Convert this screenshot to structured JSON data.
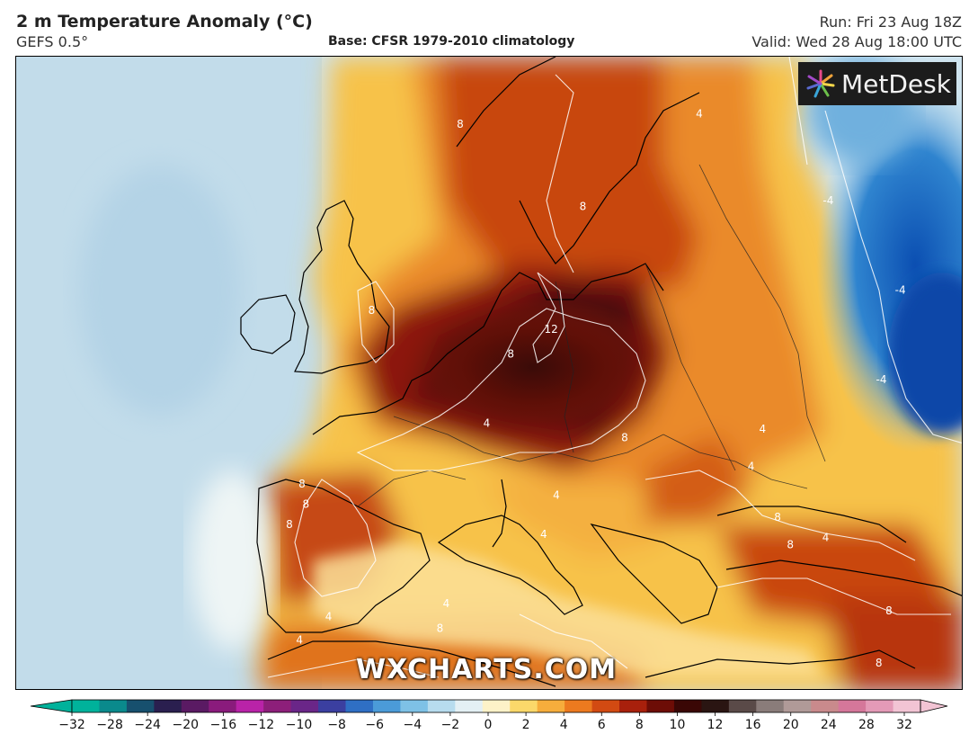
{
  "header": {
    "title": "2 m Temperature Anomaly (°C)",
    "model": "GEFS 0.5°",
    "base": "Base: CFSR 1979-2010 climatology",
    "run": "Run: Fri 23 Aug 18Z",
    "valid": "Valid: Wed 28 Aug 18:00 UTC"
  },
  "logo": {
    "text": "MetDesk",
    "icon": "pinwheel-logo-icon"
  },
  "watermark": "WXCHARTS.COM",
  "colorbar": {
    "ticks": [
      "−32",
      "−28",
      "−24",
      "−20",
      "−16",
      "−12",
      "−10",
      "−8",
      "−6",
      "−4",
      "−2",
      "0",
      "2",
      "4",
      "6",
      "8",
      "10",
      "12",
      "16",
      "20",
      "24",
      "28",
      "32"
    ],
    "colors": [
      "#00b29b",
      "#0a8a8c",
      "#17506e",
      "#2a1f4f",
      "#5a1a63",
      "#8a1b7c",
      "#b923a8",
      "#8d1f7a",
      "#6a2688",
      "#3b3fa0",
      "#2f6fc4",
      "#4b9bd8",
      "#7ec1e6",
      "#b7dcee",
      "#e4f0f4",
      "#fdf2c8",
      "#fbd86a",
      "#f6ad3c",
      "#ec7a1f",
      "#d24a12",
      "#a8200c",
      "#6d0d06",
      "#3a0705",
      "#2a1512",
      "#5a4a48",
      "#8a7c7a",
      "#b09a98",
      "#c98a8c",
      "#d5779a",
      "#e49ab7",
      "#f2c4d4"
    ]
  },
  "map_labels": [
    {
      "text": "8",
      "lon": 5.8,
      "lat": 65.5
    },
    {
      "text": "8",
      "lon": 15.5,
      "lat": 59.8
    },
    {
      "text": "8",
      "lon": -1.2,
      "lat": 52.6
    },
    {
      "text": "12",
      "lon": 13.0,
      "lat": 51.3
    },
    {
      "text": "8",
      "lon": 9.8,
      "lat": 49.6
    },
    {
      "text": "4",
      "lon": 7.9,
      "lat": 44.8
    },
    {
      "text": "4",
      "lon": 24.7,
      "lat": 66.2
    },
    {
      "text": "-4",
      "lon": 34.9,
      "lat": 60.2
    },
    {
      "text": "-4",
      "lon": 40.6,
      "lat": 54.0
    },
    {
      "text": "-4",
      "lon": 39.1,
      "lat": 47.8
    },
    {
      "text": "4",
      "lon": 29.7,
      "lat": 44.4
    },
    {
      "text": "4",
      "lon": 28.8,
      "lat": 41.8
    },
    {
      "text": "8",
      "lon": 18.8,
      "lat": 43.8
    },
    {
      "text": "8",
      "lon": -6.7,
      "lat": 40.6
    },
    {
      "text": "8",
      "lon": -6.4,
      "lat": 39.2
    },
    {
      "text": "8",
      "lon": -7.7,
      "lat": 37.8
    },
    {
      "text": "4",
      "lon": 13.4,
      "lat": 39.8
    },
    {
      "text": "4",
      "lon": 12.4,
      "lat": 37.1
    },
    {
      "text": "8",
      "lon": 30.9,
      "lat": 38.3
    },
    {
      "text": "8",
      "lon": 31.9,
      "lat": 36.4
    },
    {
      "text": "4",
      "lon": 34.7,
      "lat": 36.9
    },
    {
      "text": "4",
      "lon": 4.7,
      "lat": 32.3
    },
    {
      "text": "4",
      "lon": -4.6,
      "lat": 31.4
    },
    {
      "text": "8",
      "lon": 4.2,
      "lat": 30.6
    },
    {
      "text": "8",
      "lon": 39.7,
      "lat": 31.8
    },
    {
      "text": "4",
      "lon": -6.9,
      "lat": 29.8
    },
    {
      "text": "8",
      "lon": 38.9,
      "lat": 28.2
    }
  ]
}
